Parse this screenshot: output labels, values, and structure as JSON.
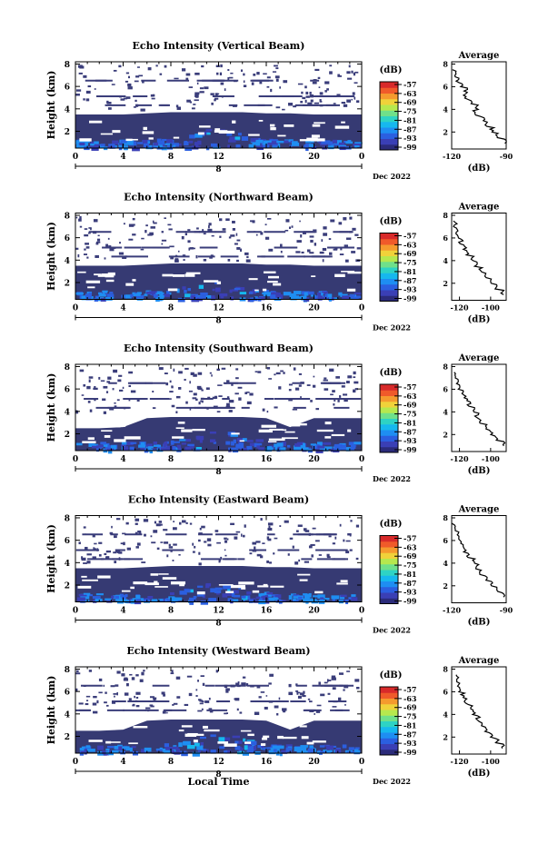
{
  "colorbar": {
    "unit": "(dB)",
    "ticks": [
      "-57",
      "-63",
      "-69",
      "-75",
      "-81",
      "-87",
      "-93",
      "-99"
    ],
    "colors": [
      "#2b2b7a",
      "#3a3fb5",
      "#2b5fe0",
      "#1e8ef2",
      "#16b8ee",
      "#2ed3c4",
      "#6fe08a",
      "#b6e84e",
      "#f0d23a",
      "#f59a2e",
      "#f05a2a",
      "#d82a2a"
    ]
  },
  "xaxis": {
    "ticks": [
      "0",
      "4",
      "8",
      "12",
      "16",
      "20",
      "0"
    ],
    "day": "8",
    "month_label": "Dec 2022",
    "title": "Local Time"
  },
  "ylabel": "Height (km)",
  "yticks": [
    "2",
    "4",
    "6",
    "8"
  ],
  "avg_ylabels": [
    "2",
    "4",
    "6",
    "8"
  ],
  "avg_title": "Average",
  "avg_unit": "(dB)",
  "chart_data": [
    {
      "type": "heatmap",
      "title": "Echo Intensity (Vertical Beam)",
      "x_range": [
        0,
        24
      ],
      "y_range_km": [
        0.5,
        8.2
      ],
      "dark_layer_top_km": [
        3.5,
        3.5,
        3.5,
        3.6,
        3.7,
        3.7,
        3.7,
        3.7,
        3.6,
        3.6,
        3.5,
        3.5
      ],
      "average": {
        "xlim": [
          -120,
          -90
        ],
        "xticks": [
          "-120",
          "-90"
        ],
        "profile": [
          [
            -90,
            1.0
          ],
          [
            -95,
            1.5
          ],
          [
            -98,
            2.0
          ],
          [
            -101,
            2.5
          ],
          [
            -103,
            3.0
          ],
          [
            -107,
            3.5
          ],
          [
            -106,
            4.0
          ],
          [
            -110,
            4.5
          ],
          [
            -113,
            5.0
          ],
          [
            -112,
            5.5
          ],
          [
            -115,
            6.0
          ],
          [
            -117,
            6.5
          ],
          [
            -118,
            7.0
          ],
          [
            -120,
            7.5
          ]
        ]
      }
    },
    {
      "type": "heatmap",
      "title": "Echo Intensity (Northward Beam)",
      "x_range": [
        0,
        24
      ],
      "y_range_km": [
        0.5,
        8.2
      ],
      "dark_layer_top_km": [
        3.5,
        3.5,
        3.5,
        3.6,
        3.7,
        3.7,
        3.7,
        3.7,
        3.6,
        3.6,
        3.5,
        3.5
      ],
      "average": {
        "xlim": [
          -125,
          -90
        ],
        "xticks": [
          "-120",
          "-100"
        ],
        "profile": [
          [
            -92,
            1.0
          ],
          [
            -97,
            1.5
          ],
          [
            -100,
            2.0
          ],
          [
            -103,
            2.5
          ],
          [
            -106,
            3.0
          ],
          [
            -110,
            3.5
          ],
          [
            -112,
            4.0
          ],
          [
            -115,
            4.5
          ],
          [
            -117,
            5.0
          ],
          [
            -119,
            5.5
          ],
          [
            -121,
            6.0
          ],
          [
            -122,
            6.5
          ],
          [
            -123,
            7.0
          ],
          [
            -124,
            7.5
          ]
        ]
      }
    },
    {
      "type": "heatmap",
      "title": "Echo Intensity (Southward Beam)",
      "x_range": [
        0,
        24
      ],
      "y_range_km": [
        0.5,
        8.2
      ],
      "dark_layer_top_km": [
        2.5,
        2.5,
        2.6,
        3.4,
        3.5,
        3.5,
        3.5,
        3.5,
        3.4,
        2.6,
        3.4,
        3.4
      ],
      "average": {
        "xlim": [
          -125,
          -90
        ],
        "xticks": [
          "-120",
          "-100"
        ],
        "profile": [
          [
            -92,
            1.0
          ],
          [
            -96,
            1.5
          ],
          [
            -100,
            2.0
          ],
          [
            -103,
            2.5
          ],
          [
            -106,
            3.0
          ],
          [
            -109,
            3.5
          ],
          [
            -111,
            4.0
          ],
          [
            -114,
            4.5
          ],
          [
            -116,
            5.0
          ],
          [
            -118,
            5.5
          ],
          [
            -120,
            6.0
          ],
          [
            -122,
            6.5
          ],
          [
            -123,
            7.0
          ],
          [
            -124,
            7.5
          ]
        ]
      }
    },
    {
      "type": "heatmap",
      "title": "Echo Intensity (Eastward Beam)",
      "x_range": [
        0,
        24
      ],
      "y_range_km": [
        0.5,
        8.2
      ],
      "dark_layer_top_km": [
        3.5,
        3.5,
        3.5,
        3.6,
        3.7,
        3.7,
        3.7,
        3.7,
        3.6,
        3.6,
        3.5,
        3.5
      ],
      "average": {
        "xlim": [
          -120,
          -90
        ],
        "xticks": [
          "-120",
          "-90"
        ],
        "profile": [
          [
            -91,
            1.0
          ],
          [
            -95,
            1.5
          ],
          [
            -98,
            2.0
          ],
          [
            -101,
            2.5
          ],
          [
            -104,
            3.0
          ],
          [
            -106,
            3.5
          ],
          [
            -108,
            4.0
          ],
          [
            -111,
            4.5
          ],
          [
            -113,
            5.0
          ],
          [
            -114,
            5.5
          ],
          [
            -116,
            6.0
          ],
          [
            -117,
            6.5
          ],
          [
            -118,
            7.0
          ],
          [
            -120,
            7.5
          ]
        ]
      }
    },
    {
      "type": "heatmap",
      "title": "Echo Intensity (Westward Beam)",
      "x_range": [
        0,
        24
      ],
      "y_range_km": [
        0.5,
        8.2
      ],
      "dark_layer_top_km": [
        2.5,
        2.5,
        2.6,
        3.4,
        3.5,
        3.5,
        3.5,
        3.5,
        3.4,
        2.6,
        3.4,
        3.4
      ],
      "average": {
        "xlim": [
          -125,
          -90
        ],
        "xticks": [
          "-120",
          "-100"
        ],
        "profile": [
          [
            -92,
            1.0
          ],
          [
            -96,
            1.5
          ],
          [
            -100,
            2.0
          ],
          [
            -103,
            2.5
          ],
          [
            -106,
            3.0
          ],
          [
            -108,
            3.5
          ],
          [
            -111,
            4.0
          ],
          [
            -113,
            4.5
          ],
          [
            -116,
            5.0
          ],
          [
            -118,
            5.5
          ],
          [
            -120,
            6.0
          ],
          [
            -121,
            6.5
          ],
          [
            -122,
            7.0
          ],
          [
            -123,
            7.5
          ]
        ]
      }
    }
  ]
}
